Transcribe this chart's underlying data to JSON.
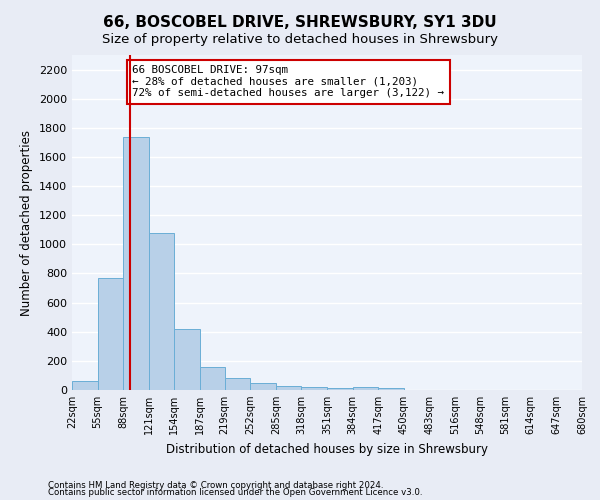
{
  "title": "66, BOSCOBEL DRIVE, SHREWSBURY, SY1 3DU",
  "subtitle": "Size of property relative to detached houses in Shrewsbury",
  "xlabel": "Distribution of detached houses by size in Shrewsbury",
  "ylabel": "Number of detached properties",
  "footnote1": "Contains HM Land Registry data © Crown copyright and database right 2024.",
  "footnote2": "Contains public sector information licensed under the Open Government Licence v3.0.",
  "bar_edges": [
    22,
    55,
    88,
    121,
    154,
    187,
    219,
    252,
    285,
    318,
    351,
    384,
    417,
    450,
    483,
    516,
    548,
    581,
    614,
    647,
    680
  ],
  "bar_heights": [
    60,
    770,
    1740,
    1075,
    420,
    155,
    80,
    45,
    30,
    20,
    15,
    20,
    15,
    0,
    0,
    0,
    0,
    0,
    0,
    0
  ],
  "bar_color": "#b8d0e8",
  "bar_edgecolor": "#6aaed6",
  "property_size": 97,
  "vline_color": "#cc0000",
  "annotation_text": "66 BOSCOBEL DRIVE: 97sqm\n← 28% of detached houses are smaller (1,203)\n72% of semi-detached houses are larger (3,122) →",
  "annotation_boxcolor": "white",
  "annotation_edgecolor": "#cc0000",
  "ylim": [
    0,
    2300
  ],
  "yticks": [
    0,
    200,
    400,
    600,
    800,
    1000,
    1200,
    1400,
    1600,
    1800,
    2000,
    2200
  ],
  "bg_color": "#e8ecf5",
  "axes_bg_color": "#eef3fb",
  "grid_color": "white",
  "title_fontsize": 11,
  "subtitle_fontsize": 9.5,
  "tick_label_fontsize": 7,
  "ylabel_fontsize": 8.5,
  "xlabel_fontsize": 8.5,
  "footnote_fontsize": 6.2
}
